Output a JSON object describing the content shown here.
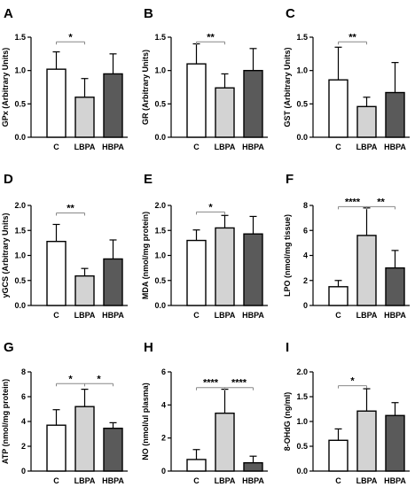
{
  "chart_data": [
    {
      "type": "bar",
      "letter": "A",
      "ylabel": "GPx (Arbitrary Units)",
      "ylim": [
        0,
        1.5
      ],
      "yticks": [
        "0.0",
        "0.5",
        "1.0",
        "1.5"
      ],
      "categories": [
        "C",
        "LBPA",
        "HBPA"
      ],
      "values": [
        1.02,
        0.6,
        0.95
      ],
      "errors": [
        0.26,
        0.28,
        0.3
      ],
      "colors": [
        "#ffffff",
        "#d3d3d3",
        "#5a5a5a"
      ],
      "significance": [
        {
          "from": 0,
          "to": 1,
          "label": "*",
          "y": 1.43
        }
      ]
    },
    {
      "type": "bar",
      "letter": "B",
      "ylabel": "GR (Arbitrary Units)",
      "ylim": [
        0,
        1.5
      ],
      "yticks": [
        "0.0",
        "0.5",
        "1.0",
        "1.5"
      ],
      "categories": [
        "C",
        "LBPA",
        "HBPA"
      ],
      "values": [
        1.1,
        0.74,
        1.0
      ],
      "errors": [
        0.3,
        0.21,
        0.33
      ],
      "colors": [
        "#ffffff",
        "#d3d3d3",
        "#5a5a5a"
      ],
      "significance": [
        {
          "from": 0,
          "to": 1,
          "label": "**",
          "y": 1.43
        }
      ]
    },
    {
      "type": "bar",
      "letter": "C",
      "ylabel": "GST (Arbitrary Units)",
      "ylim": [
        0,
        1.5
      ],
      "yticks": [
        "0.0",
        "0.5",
        "1.0",
        "1.5"
      ],
      "categories": [
        "C",
        "LBPA",
        "HBPA"
      ],
      "values": [
        0.86,
        0.46,
        0.67
      ],
      "errors": [
        0.49,
        0.14,
        0.45
      ],
      "colors": [
        "#ffffff",
        "#d3d3d3",
        "#5a5a5a"
      ],
      "significance": [
        {
          "from": 0,
          "to": 1,
          "label": "**",
          "y": 1.43
        }
      ]
    },
    {
      "type": "bar",
      "letter": "D",
      "ylabel": "yGCS (Arbitrary Units)",
      "ylim": [
        0,
        2.0
      ],
      "yticks": [
        "0.0",
        "0.5",
        "1.0",
        "1.5",
        "2.0"
      ],
      "categories": [
        "C",
        "LBPA",
        "HBPA"
      ],
      "values": [
        1.28,
        0.59,
        0.93
      ],
      "errors": [
        0.34,
        0.15,
        0.38
      ],
      "colors": [
        "#ffffff",
        "#d3d3d3",
        "#5a5a5a"
      ],
      "significance": [
        {
          "from": 0,
          "to": 1,
          "label": "**",
          "y": 1.85
        }
      ]
    },
    {
      "type": "bar",
      "letter": "E",
      "ylabel": "MDA (nmol/mg protein)",
      "ylim": [
        0,
        2.0
      ],
      "yticks": [
        "0.0",
        "0.5",
        "1.0",
        "1.5",
        "2.0"
      ],
      "categories": [
        "C",
        "LBPA",
        "HBPA"
      ],
      "values": [
        1.3,
        1.55,
        1.43
      ],
      "errors": [
        0.21,
        0.25,
        0.35
      ],
      "colors": [
        "#ffffff",
        "#d3d3d3",
        "#5a5a5a"
      ],
      "significance": [
        {
          "from": 0,
          "to": 1,
          "label": "*",
          "y": 1.87
        }
      ]
    },
    {
      "type": "bar",
      "letter": "F",
      "ylabel": "LPO (nmol/mg tissue)",
      "ylim": [
        0,
        8
      ],
      "yticks": [
        "0",
        "2",
        "4",
        "6",
        "8"
      ],
      "categories": [
        "C",
        "LBPA",
        "HBPA"
      ],
      "values": [
        1.5,
        5.6,
        3.0
      ],
      "errors": [
        0.5,
        2.2,
        1.4
      ],
      "colors": [
        "#ffffff",
        "#d3d3d3",
        "#5a5a5a"
      ],
      "significance": [
        {
          "from": 0,
          "to": 1,
          "label": "****",
          "y": 7.9
        },
        {
          "from": 1,
          "to": 2,
          "label": "**",
          "y": 7.9
        }
      ]
    },
    {
      "type": "bar",
      "letter": "G",
      "ylabel": "ATP (nmol/mg protein)",
      "ylim": [
        0,
        8
      ],
      "yticks": [
        "0",
        "2",
        "4",
        "6",
        "8"
      ],
      "categories": [
        "C",
        "LBPA",
        "HBPA"
      ],
      "values": [
        3.7,
        5.2,
        3.45
      ],
      "errors": [
        1.25,
        1.4,
        0.45
      ],
      "colors": [
        "#ffffff",
        "#d3d3d3",
        "#5a5a5a"
      ],
      "significance": [
        {
          "from": 0,
          "to": 1,
          "label": "*",
          "y": 7.05
        },
        {
          "from": 1,
          "to": 2,
          "label": "*",
          "y": 7.05
        }
      ]
    },
    {
      "type": "bar",
      "letter": "H",
      "ylabel": "NO (nmol/ul plasma)",
      "ylim": [
        0,
        6
      ],
      "yticks": [
        "0",
        "2",
        "4",
        "6"
      ],
      "categories": [
        "C",
        "LBPA",
        "HBPA"
      ],
      "values": [
        0.7,
        3.5,
        0.5
      ],
      "errors": [
        0.6,
        1.45,
        0.4
      ],
      "colors": [
        "#ffffff",
        "#d3d3d3",
        "#5a5a5a"
      ],
      "significance": [
        {
          "from": 0,
          "to": 1,
          "label": "****",
          "y": 5.05
        },
        {
          "from": 1,
          "to": 2,
          "label": "****",
          "y": 5.05
        }
      ]
    },
    {
      "type": "bar",
      "letter": "I",
      "ylabel": "8-OHdG (ng/ml)",
      "ylim": [
        0,
        2.0
      ],
      "yticks": [
        "0.0",
        "0.5",
        "1.0",
        "1.5",
        "2.0"
      ],
      "categories": [
        "C",
        "LBPA",
        "HBPA"
      ],
      "values": [
        0.62,
        1.21,
        1.12
      ],
      "errors": [
        0.23,
        0.45,
        0.26
      ],
      "colors": [
        "#ffffff",
        "#d3d3d3",
        "#5a5a5a"
      ],
      "significance": [
        {
          "from": 0,
          "to": 1,
          "label": "*",
          "y": 1.72
        }
      ]
    }
  ]
}
